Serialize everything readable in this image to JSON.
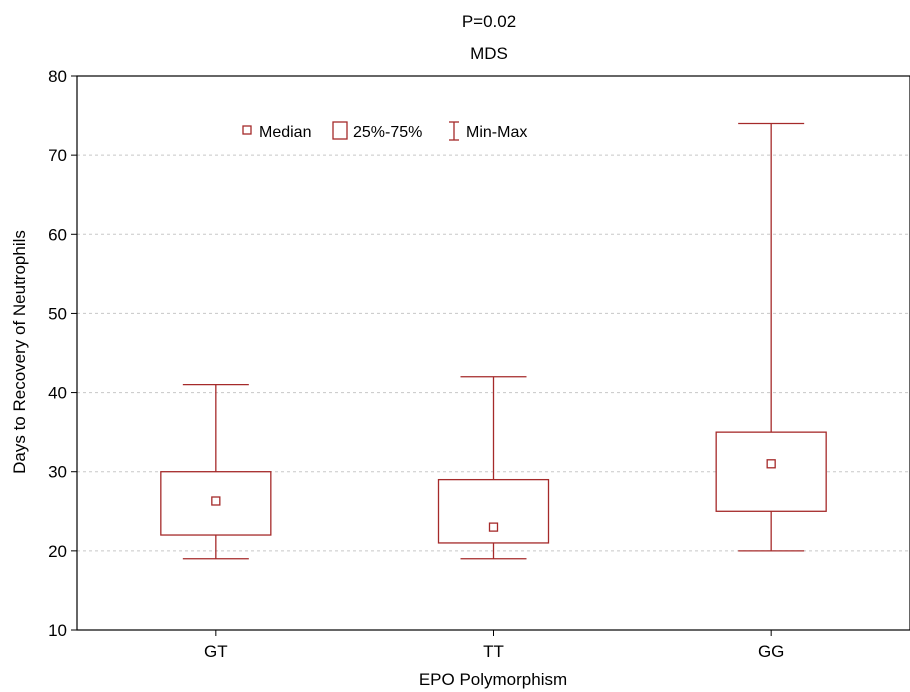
{
  "chart_data": {
    "type": "box",
    "title": "P=0.02",
    "subtitle": "MDS",
    "xlabel": "EPO Polymorphism",
    "ylabel": "Days to Recovery of Neutrophils",
    "categories": [
      "GT",
      "TT",
      "GG"
    ],
    "ylim": [
      10,
      80
    ],
    "yticks": [
      10,
      20,
      30,
      40,
      50,
      60,
      70,
      80
    ],
    "grid": true,
    "legend": {
      "position": "top-left",
      "entries": [
        "Median",
        "25%-75%",
        "Min-Max"
      ]
    },
    "series": [
      {
        "median": [
          26.3,
          23,
          31
        ],
        "q1": [
          22,
          21,
          25
        ],
        "q3": [
          30,
          29,
          35
        ],
        "min": [
          19,
          19,
          20
        ],
        "max": [
          41,
          42,
          74
        ]
      }
    ],
    "colors": {
      "box": "#a52a2a",
      "grid": "#c8c8c8",
      "axis": "#000000"
    }
  }
}
